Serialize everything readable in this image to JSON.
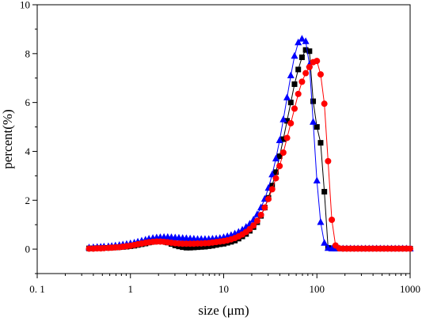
{
  "chart_data": {
    "type": "scatter",
    "title": "",
    "xlabel": "size (μm)",
    "ylabel": "percent(%)",
    "x_scale": "log",
    "xlim": [
      0.1,
      1000
    ],
    "ylim": [
      -1,
      10
    ],
    "x_ticks": [
      {
        "value": 0.1,
        "label": "0. 1"
      },
      {
        "value": 1,
        "label": "1"
      },
      {
        "value": 10,
        "label": "10"
      },
      {
        "value": 100,
        "label": "100"
      },
      {
        "value": 1000,
        "label": "1000"
      }
    ],
    "y_ticks": [
      {
        "value": 0,
        "label": "0"
      },
      {
        "value": 2,
        "label": "2"
      },
      {
        "value": 4,
        "label": "4"
      },
      {
        "value": 6,
        "label": "6"
      },
      {
        "value": 8,
        "label": "8"
      },
      {
        "value": 10,
        "label": "10"
      }
    ],
    "grid": false,
    "legend": "none",
    "series": [
      {
        "marker": "square",
        "color": "#000000",
        "x": [
          0.36,
          0.4,
          0.44,
          0.48,
          0.52,
          0.58,
          0.63,
          0.69,
          0.76,
          0.83,
          0.91,
          1.0,
          1.1,
          1.2,
          1.32,
          1.45,
          1.58,
          1.74,
          1.91,
          2.09,
          2.29,
          2.51,
          2.75,
          3.02,
          3.31,
          3.63,
          3.98,
          4.37,
          4.79,
          5.25,
          5.75,
          6.31,
          6.92,
          7.59,
          8.32,
          9.12,
          10.0,
          10.96,
          12.02,
          13.18,
          14.45,
          15.85,
          17.38,
          19.05,
          20.89,
          22.91,
          25.12,
          27.54,
          30.2,
          33.11,
          36.31,
          39.81,
          43.65,
          47.86,
          52.48,
          57.54,
          63.1,
          69.18,
          75.86,
          83.18,
          91.2,
          100.0,
          109.65,
          120.23,
          131.83,
          144.54,
          158.49,
          173.78,
          190.55,
          208.93,
          229.09,
          251.19,
          275.42,
          301.99,
          331.13,
          363.08,
          398.11,
          436.52,
          478.63,
          524.81,
          575.44,
          630.96,
          691.83,
          758.58,
          831.76,
          912.01,
          1000.0
        ],
        "y": [
          0.03,
          0.03,
          0.04,
          0.04,
          0.05,
          0.05,
          0.06,
          0.07,
          0.08,
          0.09,
          0.1,
          0.12,
          0.14,
          0.17,
          0.2,
          0.23,
          0.27,
          0.3,
          0.32,
          0.33,
          0.31,
          0.27,
          0.21,
          0.15,
          0.11,
          0.08,
          0.06,
          0.06,
          0.07,
          0.08,
          0.09,
          0.1,
          0.12,
          0.14,
          0.17,
          0.2,
          0.22,
          0.26,
          0.3,
          0.35,
          0.43,
          0.52,
          0.62,
          0.75,
          0.9,
          1.1,
          1.36,
          1.7,
          2.1,
          2.6,
          3.15,
          3.8,
          4.5,
          5.25,
          6.0,
          6.75,
          7.35,
          7.85,
          8.15,
          8.1,
          6.05,
          5.0,
          4.35,
          2.35,
          0.05,
          0.03,
          0.02,
          0.02,
          0.02,
          0.02,
          0.02,
          0.02,
          0.02,
          0.02,
          0.02,
          0.02,
          0.02,
          0.02,
          0.02,
          0.02,
          0.02,
          0.02,
          0.02,
          0.02,
          0.02,
          0.02,
          0.02
        ]
      },
      {
        "marker": "circle",
        "color": "#ff0000",
        "x": [
          0.36,
          0.4,
          0.44,
          0.48,
          0.52,
          0.58,
          0.63,
          0.69,
          0.76,
          0.83,
          0.91,
          1.0,
          1.1,
          1.2,
          1.32,
          1.45,
          1.58,
          1.74,
          1.91,
          2.09,
          2.29,
          2.51,
          2.75,
          3.02,
          3.31,
          3.63,
          3.98,
          4.37,
          4.79,
          5.25,
          5.75,
          6.31,
          6.92,
          7.59,
          8.32,
          9.12,
          10.0,
          10.96,
          12.02,
          13.18,
          14.45,
          15.85,
          17.38,
          19.05,
          20.89,
          22.91,
          25.12,
          27.54,
          30.2,
          33.11,
          36.31,
          39.81,
          43.65,
          47.86,
          52.48,
          57.54,
          63.1,
          69.18,
          75.86,
          83.18,
          91.2,
          100.0,
          109.65,
          120.23,
          131.83,
          144.54,
          158.49,
          173.78,
          190.55,
          208.93,
          229.09,
          251.19,
          275.42,
          301.99,
          331.13,
          363.08,
          398.11,
          436.52,
          478.63,
          524.81,
          575.44,
          630.96,
          691.83,
          758.58,
          831.76,
          912.01,
          1000.0
        ],
        "y": [
          0.02,
          0.02,
          0.03,
          0.03,
          0.04,
          0.05,
          0.06,
          0.07,
          0.08,
          0.1,
          0.12,
          0.14,
          0.17,
          0.2,
          0.23,
          0.26,
          0.28,
          0.3,
          0.31,
          0.31,
          0.3,
          0.28,
          0.26,
          0.24,
          0.23,
          0.22,
          0.22,
          0.22,
          0.22,
          0.23,
          0.23,
          0.24,
          0.25,
          0.27,
          0.29,
          0.31,
          0.33,
          0.36,
          0.4,
          0.45,
          0.52,
          0.6,
          0.7,
          0.82,
          0.97,
          1.16,
          1.4,
          1.7,
          2.05,
          2.45,
          2.9,
          3.4,
          3.95,
          4.55,
          5.15,
          5.75,
          6.35,
          6.85,
          7.2,
          7.45,
          7.65,
          7.7,
          7.15,
          5.95,
          3.6,
          1.2,
          0.15,
          0.03,
          0.02,
          0.02,
          0.02,
          0.02,
          0.02,
          0.02,
          0.02,
          0.02,
          0.02,
          0.02,
          0.02,
          0.02,
          0.02,
          0.02,
          0.02,
          0.02,
          0.02,
          0.02,
          0.02
        ]
      },
      {
        "marker": "triangle",
        "color": "#0000ff",
        "x": [
          0.36,
          0.4,
          0.44,
          0.48,
          0.52,
          0.58,
          0.63,
          0.69,
          0.76,
          0.83,
          0.91,
          1.0,
          1.1,
          1.2,
          1.32,
          1.45,
          1.58,
          1.74,
          1.91,
          2.09,
          2.29,
          2.51,
          2.75,
          3.02,
          3.31,
          3.63,
          3.98,
          4.37,
          4.79,
          5.25,
          5.75,
          6.31,
          6.92,
          7.59,
          8.32,
          9.12,
          10.0,
          10.96,
          12.02,
          13.18,
          14.45,
          15.85,
          17.38,
          19.05,
          20.89,
          22.91,
          25.12,
          27.54,
          30.2,
          33.11,
          36.31,
          39.81,
          43.65,
          47.86,
          52.48,
          57.54,
          63.1,
          69.18,
          75.86,
          83.18,
          91.2,
          100.0,
          109.65,
          120.23,
          131.83,
          144.54,
          158.49,
          173.78,
          190.55,
          208.93,
          229.09,
          251.19,
          275.42,
          301.99,
          331.13,
          363.08,
          398.11,
          436.52,
          478.63,
          524.81,
          575.44,
          630.96,
          691.83,
          758.58,
          831.76,
          912.01,
          1000.0
        ],
        "y": [
          0.06,
          0.07,
          0.08,
          0.09,
          0.1,
          0.11,
          0.12,
          0.14,
          0.16,
          0.18,
          0.2,
          0.23,
          0.26,
          0.3,
          0.34,
          0.38,
          0.42,
          0.45,
          0.47,
          0.48,
          0.49,
          0.49,
          0.48,
          0.47,
          0.46,
          0.45,
          0.44,
          0.43,
          0.42,
          0.41,
          0.41,
          0.41,
          0.41,
          0.42,
          0.43,
          0.45,
          0.48,
          0.52,
          0.57,
          0.63,
          0.7,
          0.79,
          0.9,
          1.03,
          1.2,
          1.42,
          1.7,
          2.05,
          2.5,
          3.05,
          3.7,
          4.45,
          5.3,
          6.2,
          7.1,
          7.9,
          8.45,
          8.6,
          8.5,
          7.55,
          5.2,
          2.8,
          1.1,
          0.25,
          0.04,
          0.02,
          0.02,
          0.02,
          0.02,
          0.02,
          0.02,
          0.02,
          0.02,
          0.02,
          0.02,
          0.02,
          0.02,
          0.02,
          0.02,
          0.02,
          0.02,
          0.02,
          0.02,
          0.02,
          0.02,
          0.02,
          0.02
        ]
      }
    ]
  }
}
